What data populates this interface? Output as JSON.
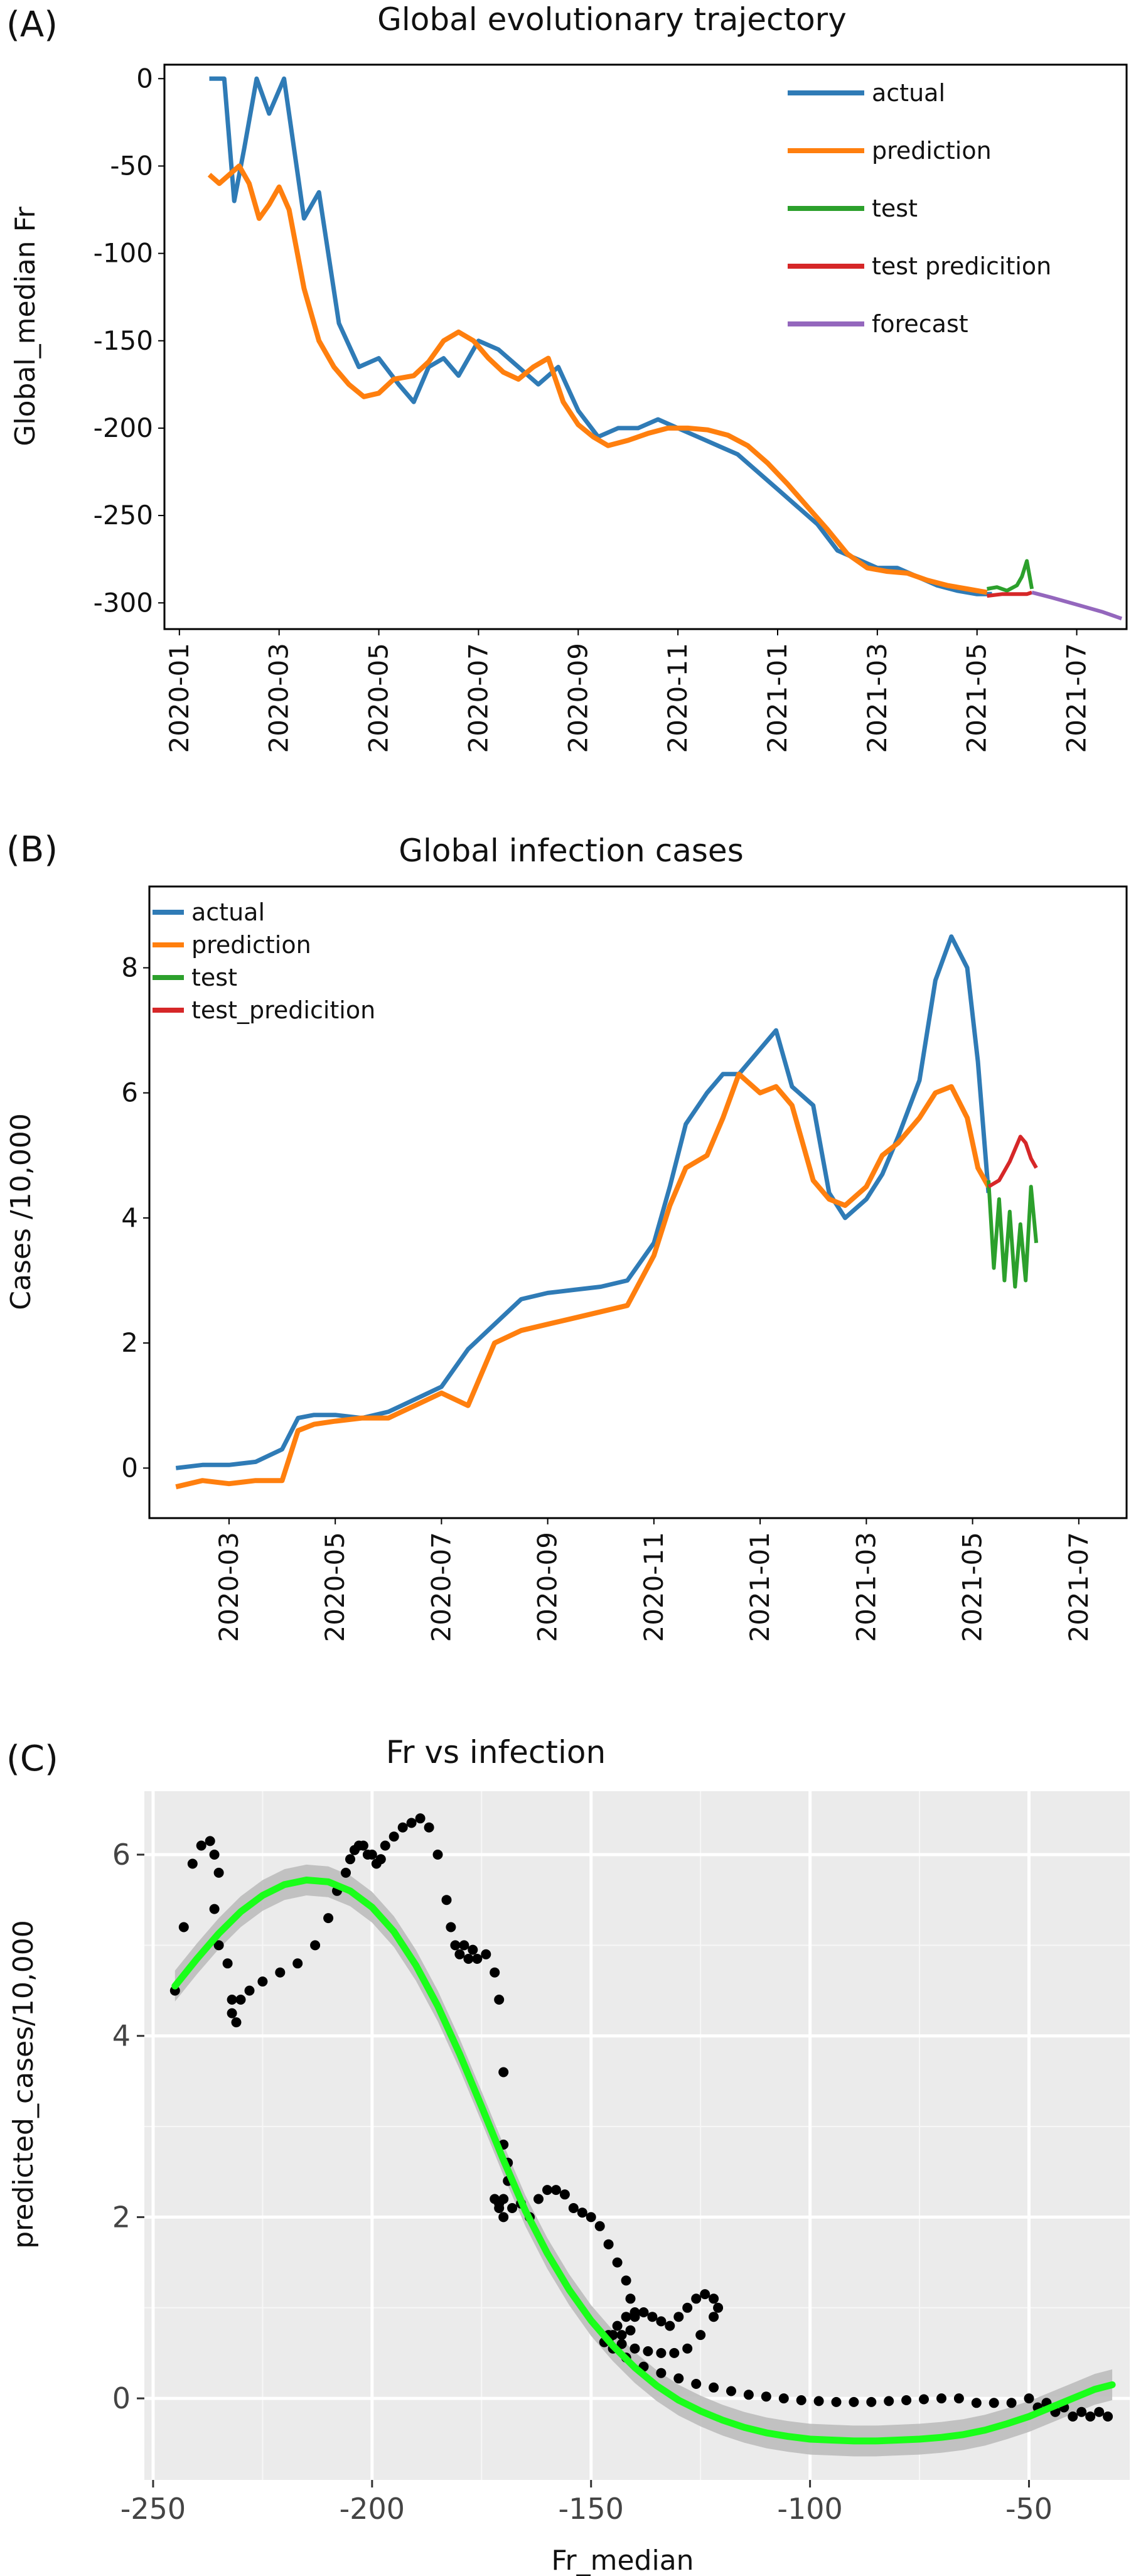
{
  "chart_data": [
    {
      "panel": "(A)",
      "type": "line",
      "title": "Global evolutionary trajectory",
      "xlabel": "",
      "ylabel": "Global_median Fr",
      "x_ticks": [
        "2020-01",
        "2020-03",
        "2020-05",
        "2020-07",
        "2020-09",
        "2020-11",
        "2021-01",
        "2021-03",
        "2021-05",
        "2021-07"
      ],
      "y_ticks": [
        "0",
        "-50",
        "-100",
        "-150",
        "-200",
        "-250",
        "-300"
      ],
      "ylim": [
        -315,
        8
      ],
      "xlim_month": [
        -0.3,
        19.0
      ],
      "legend": "top-right",
      "series": [
        {
          "name": "actual",
          "color": "#2f7bb6",
          "x": [
            0.6,
            0.75,
            0.9,
            1.1,
            1.3,
            1.55,
            1.8,
            2.1,
            2.5,
            2.8,
            3.2,
            3.6,
            4.0,
            4.4,
            4.7,
            5.0,
            5.3,
            5.6,
            6.0,
            6.4,
            6.8,
            7.2,
            7.6,
            8.0,
            8.4,
            8.8,
            9.2,
            9.6,
            10.0,
            10.4,
            10.8,
            11.2,
            11.6,
            12.0,
            12.4,
            12.8,
            13.2,
            13.6,
            14.0,
            14.4,
            14.8,
            15.2,
            15.6,
            16.0,
            16.3
          ],
          "y": [
            0,
            0,
            0,
            -70,
            -40,
            0,
            -20,
            0,
            -80,
            -65,
            -140,
            -165,
            -160,
            -175,
            -185,
            -165,
            -160,
            -170,
            -150,
            -155,
            -165,
            -175,
            -165,
            -190,
            -205,
            -200,
            -200,
            -195,
            -200,
            -205,
            -210,
            -215,
            -225,
            -235,
            -245,
            -255,
            -270,
            -275,
            -280,
            -280,
            -285,
            -290,
            -293,
            -295,
            -295
          ]
        },
        {
          "name": "prediction",
          "color": "#ff7f0e",
          "x": [
            0.6,
            0.8,
            1.0,
            1.2,
            1.4,
            1.6,
            1.8,
            2.0,
            2.2,
            2.5,
            2.8,
            3.1,
            3.4,
            3.7,
            4.0,
            4.3,
            4.7,
            5.0,
            5.3,
            5.6,
            5.9,
            6.2,
            6.5,
            6.8,
            7.1,
            7.4,
            7.7,
            8.0,
            8.3,
            8.6,
            9.0,
            9.4,
            9.8,
            10.2,
            10.6,
            11.0,
            11.4,
            11.8,
            12.2,
            12.6,
            13.0,
            13.4,
            13.8,
            14.2,
            14.6,
            15.0,
            15.4,
            15.8,
            16.2
          ],
          "y": [
            -55,
            -60,
            -55,
            -50,
            -60,
            -80,
            -72,
            -62,
            -75,
            -120,
            -150,
            -165,
            -175,
            -182,
            -180,
            -172,
            -170,
            -162,
            -150,
            -145,
            -150,
            -160,
            -168,
            -172,
            -165,
            -160,
            -185,
            -198,
            -205,
            -210,
            -207,
            -203,
            -200,
            -200,
            -201,
            -204,
            -210,
            -220,
            -232,
            -245,
            -258,
            -272,
            -280,
            -282,
            -283,
            -287,
            -290,
            -292,
            -294
          ]
        },
        {
          "name": "test",
          "color": "#2ca02c",
          "x": [
            16.2,
            16.4,
            16.6,
            16.8,
            16.9,
            17.0,
            17.1
          ],
          "y": [
            -292,
            -291,
            -293,
            -290,
            -285,
            -276,
            -292
          ]
        },
        {
          "name": "test predicition",
          "color": "#d62728",
          "x": [
            16.2,
            16.5,
            16.8,
            17.0,
            17.1
          ],
          "y": [
            -296,
            -295,
            -295,
            -295,
            -294
          ]
        },
        {
          "name": "forecast",
          "color": "#9467bd",
          "x": [
            17.1,
            17.5,
            18.0,
            18.5,
            18.9
          ],
          "y": [
            -294,
            -297,
            -301,
            -305,
            -309
          ]
        }
      ]
    },
    {
      "panel": "(B)",
      "type": "line",
      "title": "Global infection cases",
      "xlabel": "",
      "ylabel": "Cases /10,000",
      "x_ticks": [
        "2020-03",
        "2020-05",
        "2020-07",
        "2020-09",
        "2020-11",
        "2021-01",
        "2021-03",
        "2021-05",
        "2021-07"
      ],
      "y_ticks": [
        "0",
        "2",
        "4",
        "6",
        "8"
      ],
      "ylim": [
        -0.8,
        9.3
      ],
      "xlim_month": [
        0.5,
        18.9
      ],
      "legend": "top-left",
      "series": [
        {
          "name": "actual",
          "color": "#2f7bb6",
          "x": [
            1.0,
            1.5,
            2.0,
            2.5,
            3.0,
            3.3,
            3.6,
            4.0,
            4.5,
            5.0,
            5.5,
            6.0,
            6.5,
            7.0,
            7.5,
            8.0,
            8.5,
            9.0,
            9.5,
            10.0,
            10.3,
            10.6,
            11.0,
            11.3,
            11.6,
            12.0,
            12.3,
            12.6,
            13.0,
            13.3,
            13.6,
            14.0,
            14.3,
            14.6,
            15.0,
            15.3,
            15.6,
            15.9,
            16.1,
            16.3
          ],
          "y": [
            0.0,
            0.05,
            0.05,
            0.1,
            0.3,
            0.8,
            0.85,
            0.85,
            0.8,
            0.9,
            1.1,
            1.3,
            1.9,
            2.3,
            2.7,
            2.8,
            2.85,
            2.9,
            3.0,
            3.6,
            4.5,
            5.5,
            6.0,
            6.3,
            6.3,
            6.7,
            7.0,
            6.1,
            5.8,
            4.4,
            4.0,
            4.3,
            4.7,
            5.3,
            6.2,
            7.8,
            8.5,
            8.0,
            6.5,
            4.4
          ]
        },
        {
          "name": "prediction",
          "color": "#ff7f0e",
          "x": [
            1.0,
            1.5,
            2.0,
            2.5,
            3.0,
            3.3,
            3.6,
            4.0,
            4.5,
            5.0,
            5.5,
            6.0,
            6.5,
            7.0,
            7.5,
            8.0,
            8.5,
            9.0,
            9.5,
            10.0,
            10.3,
            10.6,
            11.0,
            11.3,
            11.6,
            12.0,
            12.3,
            12.6,
            13.0,
            13.3,
            13.6,
            14.0,
            14.3,
            14.6,
            15.0,
            15.3,
            15.6,
            15.9,
            16.1,
            16.3
          ],
          "y": [
            -0.3,
            -0.2,
            -0.25,
            -0.2,
            -0.2,
            0.6,
            0.7,
            0.75,
            0.8,
            0.8,
            1.0,
            1.2,
            1.0,
            2.0,
            2.2,
            2.3,
            2.4,
            2.5,
            2.6,
            3.4,
            4.2,
            4.8,
            5.0,
            5.6,
            6.3,
            6.0,
            6.1,
            5.8,
            4.6,
            4.3,
            4.2,
            4.5,
            5.0,
            5.2,
            5.6,
            6.0,
            6.1,
            5.6,
            4.8,
            4.5
          ]
        },
        {
          "name": "test",
          "color": "#2ca02c",
          "x": [
            16.3,
            16.4,
            16.5,
            16.6,
            16.7,
            16.8,
            16.9,
            17.0,
            17.1,
            17.2
          ],
          "y": [
            4.6,
            3.2,
            4.3,
            3.0,
            4.1,
            2.9,
            3.9,
            3.0,
            4.5,
            3.6
          ]
        },
        {
          "name": "test_predicition",
          "color": "#d62728",
          "x": [
            16.3,
            16.5,
            16.7,
            16.9,
            17.0,
            17.1,
            17.2
          ],
          "y": [
            4.5,
            4.6,
            4.9,
            5.3,
            5.2,
            4.95,
            4.8
          ]
        }
      ]
    },
    {
      "panel": "(C)",
      "type": "scatter",
      "title": "Fr vs infection",
      "xlabel": "Fr_median",
      "ylabel": "predicted_cases/10,000",
      "x_ticks": [
        "-250",
        "-200",
        "-150",
        "-100",
        "-50"
      ],
      "y_ticks": [
        "0",
        "2",
        "4",
        "6"
      ],
      "xlim": [
        -252,
        -27
      ],
      "ylim": [
        -0.9,
        6.7
      ],
      "grid": true,
      "background": "#ebebeb",
      "points_x": [
        -245,
        -243,
        -241,
        -239,
        -237,
        -236,
        -235,
        -236,
        -235,
        -233,
        -232,
        -231,
        -232,
        -230,
        -228,
        -225,
        -221,
        -217,
        -213,
        -210,
        -208,
        -206,
        -205,
        -204,
        -203,
        -202,
        -201,
        -200,
        -199,
        -198,
        -197,
        -195,
        -193,
        -191,
        -189,
        -187,
        -185,
        -183,
        -182,
        -181,
        -180,
        -179,
        -178,
        -177,
        -176,
        -174,
        -172,
        -171,
        -170,
        -170,
        -169,
        -169,
        -170,
        -171,
        -172,
        -171,
        -170,
        -168,
        -166,
        -164,
        -162,
        -160,
        -158,
        -156,
        -154,
        -152,
        -150,
        -148,
        -146,
        -144,
        -142,
        -141,
        -140,
        -141,
        -143,
        -145,
        -146,
        -144,
        -142,
        -140,
        -138,
        -136,
        -134,
        -132,
        -130,
        -128,
        -126,
        -124,
        -122,
        -121,
        -122,
        -125,
        -128,
        -131,
        -134,
        -137,
        -140,
        -143,
        -146,
        -147,
        -145,
        -142,
        -138,
        -134,
        -130,
        -126,
        -122,
        -118,
        -114,
        -110,
        -106,
        -102,
        -98,
        -94,
        -90,
        -86,
        -82,
        -78,
        -74,
        -70,
        -66,
        -62,
        -58,
        -54,
        -50,
        -48,
        -46,
        -44,
        -42,
        -40,
        -38,
        -36,
        -34,
        -32
      ],
      "points_y": [
        4.5,
        5.2,
        5.9,
        6.1,
        6.15,
        6.0,
        5.8,
        5.4,
        5.0,
        4.8,
        4.4,
        4.15,
        4.25,
        4.4,
        4.5,
        4.6,
        4.7,
        4.8,
        5.0,
        5.3,
        5.6,
        5.8,
        5.95,
        6.05,
        6.1,
        6.1,
        6.0,
        6.0,
        5.9,
        5.95,
        6.1,
        6.2,
        6.3,
        6.35,
        6.4,
        6.3,
        6.0,
        5.5,
        5.2,
        5.0,
        4.9,
        5.0,
        4.85,
        4.95,
        4.85,
        4.9,
        4.7,
        4.4,
        3.6,
        2.8,
        2.6,
        2.4,
        2.2,
        2.15,
        2.2,
        2.1,
        2.0,
        2.1,
        2.15,
        2.0,
        2.2,
        2.3,
        2.3,
        2.25,
        2.1,
        2.05,
        2.0,
        1.9,
        1.7,
        1.5,
        1.3,
        1.1,
        0.9,
        0.75,
        0.7,
        0.7,
        0.7,
        0.8,
        0.9,
        0.95,
        0.95,
        0.9,
        0.85,
        0.8,
        0.9,
        1.0,
        1.1,
        1.15,
        1.1,
        1.0,
        0.9,
        0.7,
        0.55,
        0.5,
        0.5,
        0.52,
        0.55,
        0.6,
        0.65,
        0.62,
        0.55,
        0.45,
        0.35,
        0.28,
        0.22,
        0.16,
        0.12,
        0.08,
        0.04,
        0.02,
        0.0,
        -0.02,
        -0.03,
        -0.04,
        -0.04,
        -0.04,
        -0.03,
        -0.02,
        -0.01,
        0.0,
        0.0,
        -0.05,
        -0.05,
        -0.05,
        0.0,
        -0.1,
        -0.05,
        -0.15,
        -0.1,
        -0.2,
        -0.15,
        -0.2,
        -0.15,
        -0.2
      ],
      "fit_x": [
        -245,
        -240,
        -235,
        -230,
        -225,
        -220,
        -215,
        -210,
        -205,
        -200,
        -195,
        -190,
        -185,
        -180,
        -175,
        -170,
        -165,
        -160,
        -155,
        -150,
        -145,
        -140,
        -135,
        -130,
        -125,
        -120,
        -115,
        -110,
        -105,
        -100,
        -95,
        -90,
        -85,
        -80,
        -75,
        -70,
        -65,
        -60,
        -55,
        -50,
        -45,
        -40,
        -35,
        -31
      ],
      "fit_y": [
        4.55,
        4.85,
        5.13,
        5.37,
        5.55,
        5.67,
        5.72,
        5.7,
        5.6,
        5.42,
        5.15,
        4.78,
        4.33,
        3.8,
        3.22,
        2.63,
        2.07,
        1.6,
        1.2,
        0.86,
        0.58,
        0.34,
        0.14,
        -0.02,
        -0.14,
        -0.24,
        -0.32,
        -0.38,
        -0.42,
        -0.45,
        -0.46,
        -0.47,
        -0.47,
        -0.46,
        -0.45,
        -0.43,
        -0.4,
        -0.35,
        -0.28,
        -0.2,
        -0.1,
        0.0,
        0.1,
        0.15
      ],
      "fit_color": "#1aff1a",
      "ci_color": "#bdbdbd",
      "point_color": "#000000"
    }
  ]
}
